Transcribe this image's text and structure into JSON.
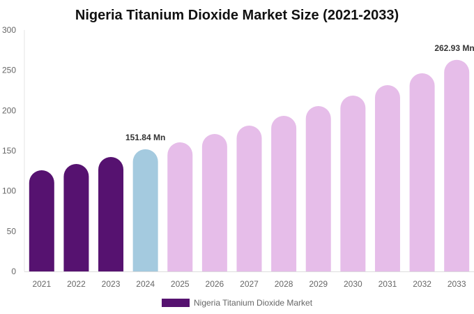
{
  "chart_data": {
    "type": "bar",
    "title": "Nigeria Titanium Dioxide Market Size (2021-2033)",
    "xlabel": "",
    "ylabel": "",
    "ylim": [
      0,
      300
    ],
    "yticks": [
      "0",
      "50",
      "100",
      "150",
      "200",
      "250",
      "300"
    ],
    "grid": false,
    "legend_position": "bottom",
    "categories": [
      "2021",
      "2022",
      "2023",
      "2024",
      "2025",
      "2026",
      "2027",
      "2028",
      "2029",
      "2030",
      "2031",
      "2032",
      "2033"
    ],
    "series": [
      {
        "name": "Nigeria Titanium Dioxide Market",
        "values": [
          125.7,
          133.5,
          142.2,
          151.84,
          160.4,
          170.8,
          181.2,
          193.4,
          205.5,
          218.5,
          231.5,
          246.2,
          262.93
        ],
        "colors": [
          "#561270",
          "#561270",
          "#561270",
          "#a4cadf",
          "#e6bde9",
          "#e6bde9",
          "#e6bde9",
          "#e6bde9",
          "#e6bde9",
          "#e6bde9",
          "#e6bde9",
          "#e6bde9",
          "#e6bde9"
        ]
      }
    ],
    "data_labels": [
      {
        "index": 3,
        "text": "151.84 Mn"
      },
      {
        "index": 12,
        "text": "262.93 Mn"
      }
    ],
    "legend_color": "#561270"
  }
}
